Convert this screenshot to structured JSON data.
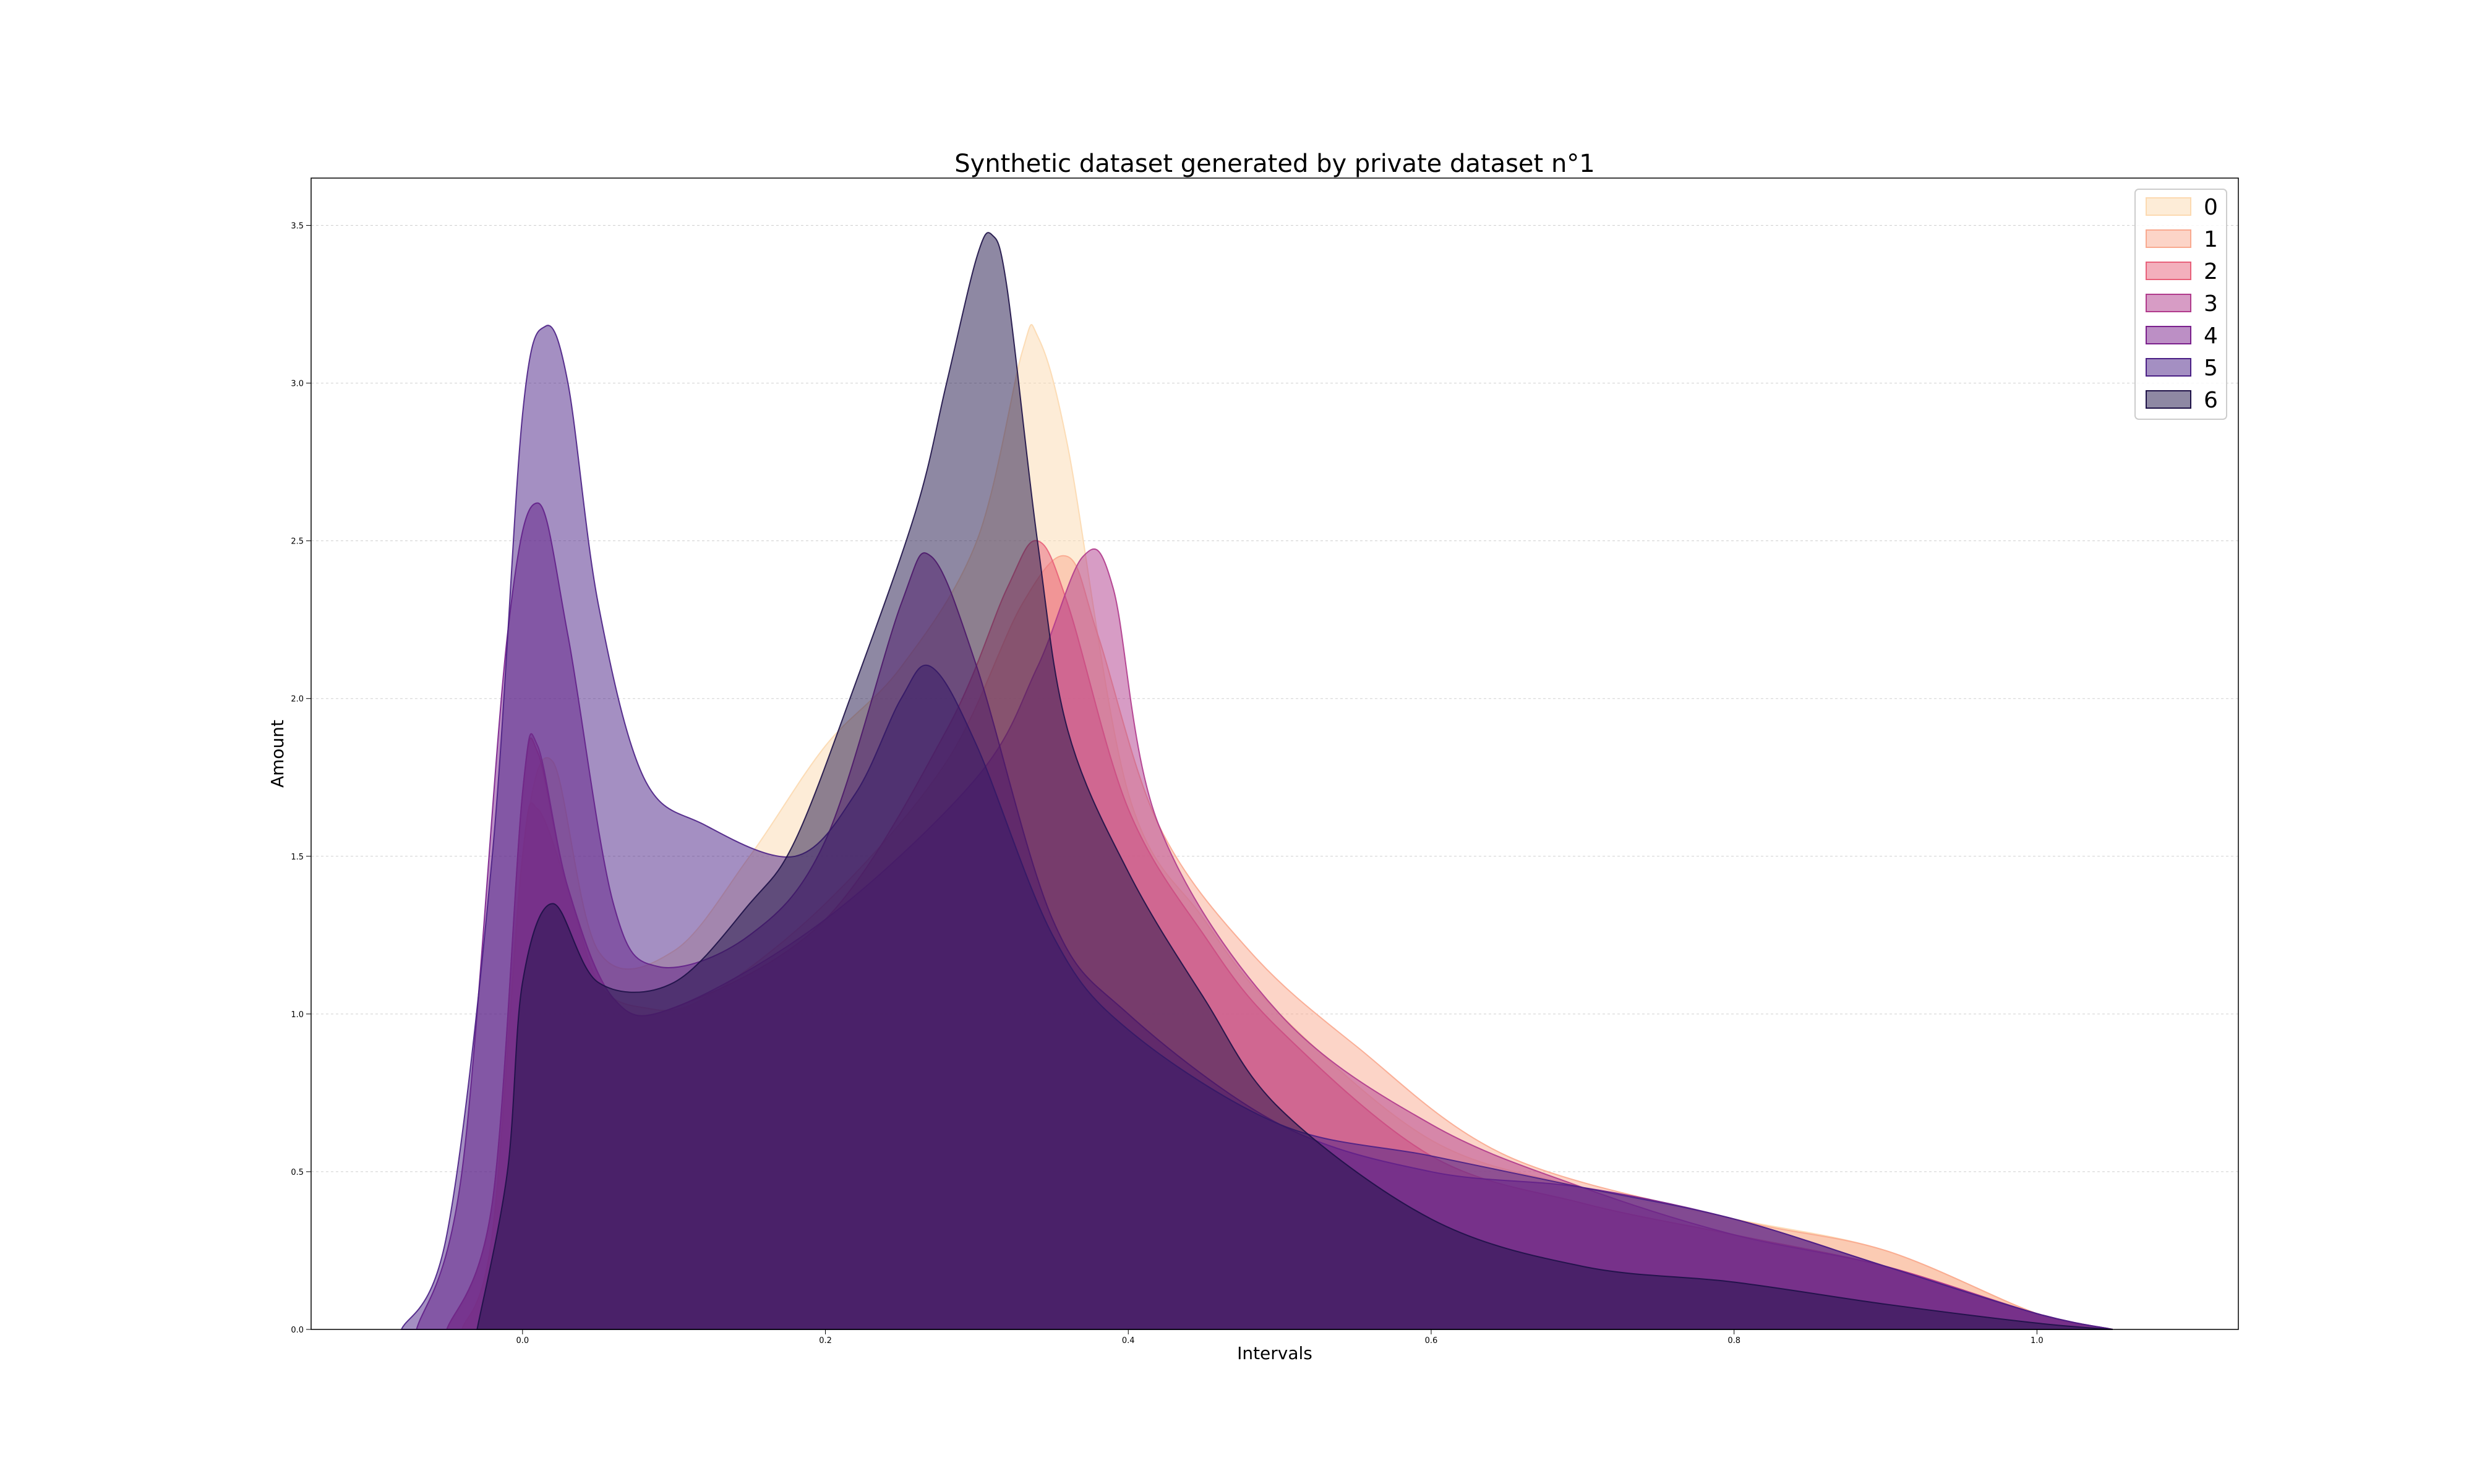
{
  "chart_data": {
    "type": "area",
    "title": "Synthetic dataset generated by private dataset n°1",
    "xlabel": "Intervals",
    "ylabel": "Amount",
    "xlim": [
      -0.28,
      2.27
    ],
    "ylim": [
      0,
      3.65
    ],
    "xticks": [
      "0.0",
      "0.2",
      "0.4",
      "0.6",
      "0.8",
      "1.0"
    ],
    "xtick_values": [
      0.0,
      0.2,
      0.4,
      0.6,
      0.8,
      1.0
    ],
    "yticks": [
      "0.0",
      "0.5",
      "1.0",
      "1.5",
      "2.0",
      "2.5",
      "3.0",
      "3.5"
    ],
    "ytick_values": [
      0.0,
      0.5,
      1.0,
      1.5,
      2.0,
      2.5,
      3.0,
      3.5
    ],
    "grid": "y",
    "legend_position": "top-right",
    "series": [
      {
        "name": "0",
        "color": "#fcd9b0",
        "x": [
          -0.04,
          -0.02,
          0.0,
          0.02,
          0.05,
          0.1,
          0.15,
          0.2,
          0.25,
          0.3,
          0.33,
          0.34,
          0.36,
          0.4,
          0.45,
          0.5,
          0.6,
          0.7,
          0.8,
          0.9,
          1.0,
          1.05
        ],
        "y": [
          0.0,
          0.3,
          1.5,
          1.8,
          1.2,
          1.2,
          1.5,
          1.85,
          2.1,
          2.5,
          3.1,
          3.15,
          2.8,
          1.7,
          1.3,
          1.0,
          0.6,
          0.45,
          0.35,
          0.25,
          0.05,
          0.0
        ]
      },
      {
        "name": "1",
        "color": "#f9a98f",
        "x": [
          -0.04,
          -0.02,
          0.0,
          0.01,
          0.03,
          0.05,
          0.08,
          0.12,
          0.2,
          0.28,
          0.33,
          0.36,
          0.38,
          0.42,
          0.48,
          0.55,
          0.65,
          0.8,
          0.9,
          1.0,
          1.05
        ],
        "y": [
          0.0,
          0.3,
          1.5,
          1.65,
          1.4,
          1.1,
          1.02,
          1.05,
          1.35,
          1.8,
          2.3,
          2.45,
          2.2,
          1.6,
          1.2,
          0.9,
          0.55,
          0.35,
          0.25,
          0.05,
          0.0
        ]
      },
      {
        "name": "2",
        "color": "#e8607a",
        "x": [
          -0.05,
          -0.02,
          0.0,
          0.01,
          0.03,
          0.06,
          0.1,
          0.2,
          0.28,
          0.32,
          0.34,
          0.36,
          0.4,
          0.45,
          0.5,
          0.6,
          0.7,
          0.8,
          0.9,
          1.0,
          1.05
        ],
        "y": [
          0.0,
          0.4,
          1.7,
          1.83,
          1.4,
          1.05,
          1.02,
          1.3,
          1.9,
          2.35,
          2.5,
          2.3,
          1.65,
          1.25,
          0.95,
          0.55,
          0.4,
          0.3,
          0.2,
          0.05,
          0.0
        ]
      },
      {
        "name": "3",
        "color": "#b03a8c",
        "x": [
          -0.05,
          -0.02,
          0.0,
          0.01,
          0.03,
          0.06,
          0.1,
          0.2,
          0.3,
          0.34,
          0.37,
          0.39,
          0.42,
          0.5,
          0.6,
          0.7,
          0.8,
          0.9,
          1.0,
          1.05
        ],
        "y": [
          0.0,
          0.4,
          1.7,
          1.85,
          1.4,
          1.05,
          1.02,
          1.3,
          1.75,
          2.1,
          2.45,
          2.35,
          1.6,
          1.0,
          0.65,
          0.45,
          0.3,
          0.2,
          0.05,
          0.0
        ]
      },
      {
        "name": "4",
        "color": "#7a1f8c",
        "x": [
          -0.07,
          -0.04,
          -0.01,
          0.01,
          0.03,
          0.06,
          0.09,
          0.15,
          0.2,
          0.25,
          0.27,
          0.3,
          0.35,
          0.4,
          0.5,
          0.6,
          0.7,
          0.8,
          0.9,
          1.0,
          1.05
        ],
        "y": [
          0.0,
          0.5,
          2.2,
          2.62,
          2.2,
          1.35,
          1.15,
          1.25,
          1.55,
          2.3,
          2.45,
          2.1,
          1.3,
          1.0,
          0.65,
          0.5,
          0.45,
          0.35,
          0.2,
          0.05,
          0.0
        ]
      },
      {
        "name": "5",
        "color": "#4a1f85",
        "x": [
          -0.08,
          -0.05,
          -0.02,
          0.0,
          0.015,
          0.03,
          0.05,
          0.08,
          0.12,
          0.18,
          0.22,
          0.25,
          0.27,
          0.3,
          0.35,
          0.4,
          0.5,
          0.6,
          0.7,
          0.8,
          0.9,
          1.0,
          1.05
        ],
        "y": [
          0.0,
          0.3,
          1.5,
          2.9,
          3.18,
          3.0,
          2.3,
          1.75,
          1.6,
          1.5,
          1.7,
          2.0,
          2.1,
          1.85,
          1.25,
          0.95,
          0.65,
          0.55,
          0.45,
          0.35,
          0.2,
          0.05,
          0.0
        ]
      },
      {
        "name": "6",
        "color": "#1d1147",
        "x": [
          -0.03,
          -0.01,
          0.0,
          0.02,
          0.05,
          0.1,
          0.15,
          0.18,
          0.22,
          0.26,
          0.28,
          0.3,
          0.31,
          0.32,
          0.34,
          0.36,
          0.4,
          0.45,
          0.5,
          0.6,
          0.7,
          0.8,
          0.9,
          1.0,
          1.05
        ],
        "y": [
          0.0,
          0.5,
          1.1,
          1.35,
          1.1,
          1.1,
          1.35,
          1.55,
          2.05,
          2.6,
          3.0,
          3.4,
          3.47,
          3.3,
          2.5,
          1.9,
          1.45,
          1.05,
          0.7,
          0.35,
          0.2,
          0.15,
          0.08,
          0.02,
          0.0
        ]
      }
    ]
  }
}
